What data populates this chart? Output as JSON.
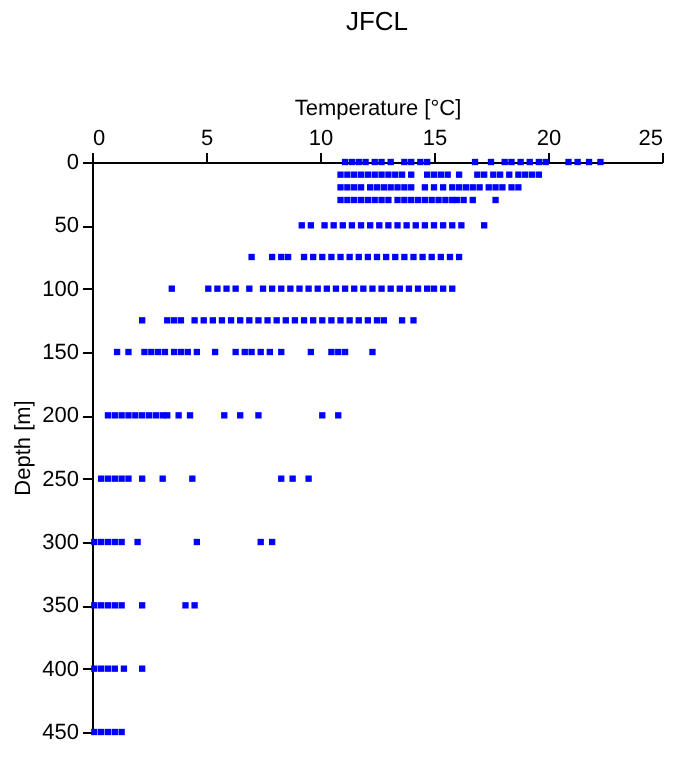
{
  "chart_data": {
    "type": "scatter",
    "title": "JFCL",
    "xlabel": "Temperature [°C]",
    "ylabel": "Depth [m]",
    "xlim": [
      0,
      25
    ],
    "xticks": [
      0,
      5,
      10,
      15,
      20,
      25
    ],
    "ylim": [
      450,
      0
    ],
    "yticks": [
      0,
      50,
      100,
      150,
      200,
      250,
      300,
      350,
      400,
      450
    ],
    "grid": false,
    "legend": false,
    "marker": "square",
    "series": [
      {
        "color": "#0000ff",
        "x": [
          11.1,
          11.4,
          11.7,
          12.0,
          12.4,
          12.7,
          13.1,
          13.7,
          14.0,
          14.4,
          14.7,
          16.8,
          17.5,
          18.1,
          18.4,
          18.8,
          19.2,
          19.6,
          19.9,
          20.9,
          21.3,
          21.8,
          22.3
        ],
        "values": [
          0,
          0,
          0,
          0,
          0,
          0,
          0,
          0,
          0,
          0,
          0,
          0,
          0,
          0,
          0,
          0,
          0,
          0,
          0,
          0,
          0,
          0,
          0
        ]
      },
      {
        "color": "#0000ff",
        "x": [
          10.9,
          11.2,
          11.5,
          11.8,
          12.1,
          12.4,
          12.7,
          13.0,
          13.3,
          13.6,
          14.0,
          14.7,
          15.0,
          15.3,
          15.6,
          16.1,
          16.9,
          17.2,
          17.6,
          17.9,
          18.3,
          18.7,
          19.0,
          19.3,
          19.6
        ],
        "values": [
          10,
          10,
          10,
          10,
          10,
          10,
          10,
          10,
          10,
          10,
          10,
          10,
          10,
          10,
          10,
          10,
          10,
          10,
          10,
          10,
          10,
          10,
          10,
          10,
          10
        ]
      },
      {
        "color": "#0000ff",
        "x": [
          10.9,
          11.2,
          11.5,
          11.8,
          12.2,
          12.5,
          12.8,
          13.1,
          13.4,
          13.7,
          14.0,
          14.6,
          15.0,
          15.4,
          15.8,
          16.1,
          16.4,
          16.7,
          17.0,
          17.4,
          17.7,
          18.0,
          18.4,
          18.7
        ],
        "values": [
          20,
          20,
          20,
          20,
          20,
          20,
          20,
          20,
          20,
          20,
          20,
          20,
          20,
          20,
          20,
          20,
          20,
          20,
          20,
          20,
          20,
          20,
          20,
          20
        ]
      },
      {
        "color": "#0000ff",
        "x": [
          10.9,
          11.2,
          11.5,
          11.8,
          12.1,
          12.4,
          12.7,
          13.0,
          13.4,
          13.7,
          14.0,
          14.3,
          14.6,
          14.9,
          15.2,
          15.5,
          15.8,
          16.0,
          16.3,
          16.7,
          17.7
        ],
        "values": [
          30,
          30,
          30,
          30,
          30,
          30,
          30,
          30,
          30,
          30,
          30,
          30,
          30,
          30,
          30,
          30,
          30,
          30,
          30,
          30,
          30
        ]
      },
      {
        "color": "#0000ff",
        "x": [
          9.2,
          9.6,
          10.2,
          10.6,
          11.0,
          11.4,
          11.8,
          12.2,
          12.6,
          13.0,
          13.4,
          13.8,
          14.2,
          14.6,
          15.0,
          15.4,
          15.8,
          16.2,
          17.2
        ],
        "values": [
          50,
          50,
          50,
          50,
          50,
          50,
          50,
          50,
          50,
          50,
          50,
          50,
          50,
          50,
          50,
          50,
          50,
          50,
          50
        ]
      },
      {
        "color": "#0000ff",
        "x": [
          7.0,
          7.9,
          8.3,
          8.6,
          9.3,
          9.7,
          10.1,
          10.5,
          10.9,
          11.3,
          11.7,
          12.1,
          12.5,
          12.9,
          13.3,
          13.7,
          14.1,
          14.5,
          14.9,
          15.3,
          15.7,
          16.1
        ],
        "values": [
          75,
          75,
          75,
          75,
          75,
          75,
          75,
          75,
          75,
          75,
          75,
          75,
          75,
          75,
          75,
          75,
          75,
          75,
          75,
          75,
          75,
          75
        ]
      },
      {
        "color": "#0000ff",
        "x": [
          3.5,
          5.1,
          5.5,
          5.9,
          6.3,
          6.9,
          7.5,
          7.9,
          8.3,
          8.7,
          9.1,
          9.5,
          9.9,
          10.3,
          10.7,
          11.1,
          11.5,
          11.9,
          12.3,
          12.7,
          13.1,
          13.5,
          13.9,
          14.3,
          14.7,
          15.0,
          15.4,
          15.8
        ],
        "values": [
          100,
          100,
          100,
          100,
          100,
          100,
          100,
          100,
          100,
          100,
          100,
          100,
          100,
          100,
          100,
          100,
          100,
          100,
          100,
          100,
          100,
          100,
          100,
          100,
          100,
          100,
          100,
          100
        ]
      },
      {
        "color": "#0000ff",
        "x": [
          2.2,
          3.3,
          3.6,
          3.9,
          4.5,
          4.9,
          5.3,
          5.7,
          6.1,
          6.5,
          6.9,
          7.3,
          7.7,
          8.1,
          8.5,
          8.9,
          9.3,
          9.7,
          10.1,
          10.5,
          10.9,
          11.3,
          11.7,
          12.1,
          12.5,
          12.8,
          13.6,
          14.1
        ],
        "values": [
          125,
          125,
          125,
          125,
          125,
          125,
          125,
          125,
          125,
          125,
          125,
          125,
          125,
          125,
          125,
          125,
          125,
          125,
          125,
          125,
          125,
          125,
          125,
          125,
          125,
          125,
          125,
          125
        ]
      },
      {
        "color": "#0000ff",
        "x": [
          1.1,
          1.6,
          2.3,
          2.6,
          2.9,
          3.2,
          3.6,
          3.9,
          4.2,
          4.6,
          5.4,
          6.3,
          6.7,
          7.0,
          7.4,
          7.8,
          8.3,
          9.6,
          10.5,
          10.8,
          11.1,
          12.3
        ],
        "values": [
          150,
          150,
          150,
          150,
          150,
          150,
          150,
          150,
          150,
          150,
          150,
          150,
          150,
          150,
          150,
          150,
          150,
          150,
          150,
          150,
          150,
          150
        ]
      },
      {
        "color": "#0000ff",
        "x": [
          0.7,
          1.0,
          1.3,
          1.6,
          1.9,
          2.2,
          2.5,
          2.8,
          3.1,
          3.3,
          3.8,
          4.3,
          5.8,
          6.5,
          7.3,
          10.1,
          10.8
        ],
        "values": [
          200,
          200,
          200,
          200,
          200,
          200,
          200,
          200,
          200,
          200,
          200,
          200,
          200,
          200,
          200,
          200,
          200
        ]
      },
      {
        "color": "#0000ff",
        "x": [
          0.4,
          0.7,
          1.0,
          1.3,
          1.6,
          2.2,
          3.1,
          4.4,
          8.3,
          8.8,
          9.5
        ],
        "values": [
          250,
          250,
          250,
          250,
          250,
          250,
          250,
          250,
          250,
          250,
          250
        ]
      },
      {
        "color": "#0000ff",
        "x": [
          0.1,
          0.4,
          0.7,
          1.0,
          1.3,
          2.0,
          4.6,
          7.4,
          7.9
        ],
        "values": [
          300,
          300,
          300,
          300,
          300,
          300,
          300,
          300,
          300
        ]
      },
      {
        "color": "#0000ff",
        "x": [
          0.1,
          0.4,
          0.7,
          1.0,
          1.3,
          2.2,
          4.1,
          4.5
        ],
        "values": [
          350,
          350,
          350,
          350,
          350,
          350,
          350,
          350
        ]
      },
      {
        "color": "#0000ff",
        "x": [
          0.1,
          0.4,
          0.7,
          1.0,
          1.4,
          2.2
        ],
        "values": [
          400,
          400,
          400,
          400,
          400,
          400
        ]
      },
      {
        "color": "#0000ff",
        "x": [
          0.1,
          0.4,
          0.7,
          1.0,
          1.3
        ],
        "values": [
          450,
          450,
          450,
          450,
          450
        ]
      }
    ]
  }
}
